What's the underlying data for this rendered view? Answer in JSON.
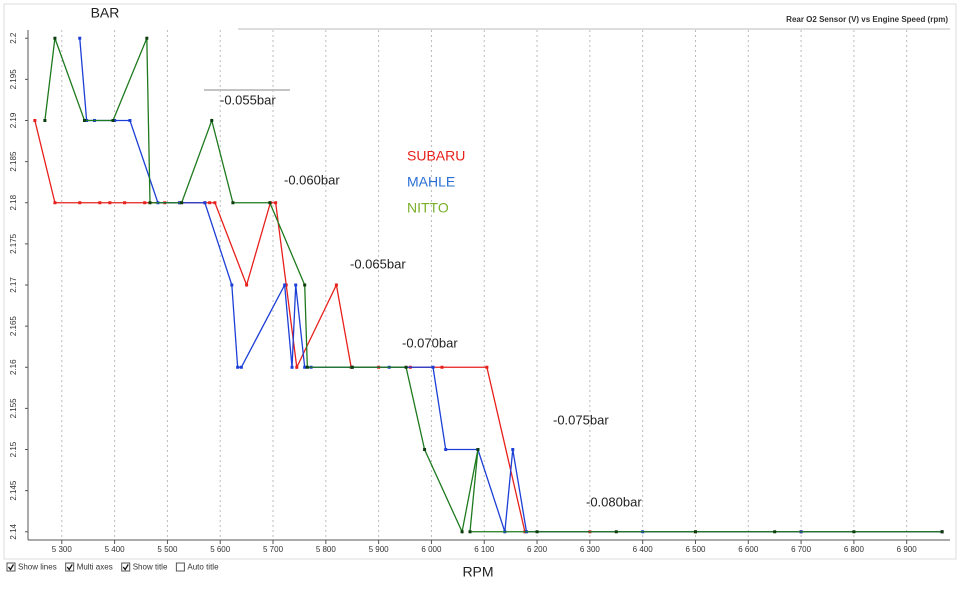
{
  "chart_data": {
    "type": "line",
    "title": "Rear O2 Sensor (V) vs Engine Speed (rpm)",
    "y_label": "BAR",
    "x_label": "RPM",
    "xlim": [
      5236,
      6982
    ],
    "ylim": [
      2.139,
      2.201
    ],
    "xticks": [
      {
        "value": 5300,
        "label": "5 300"
      },
      {
        "value": 5400,
        "label": "5 400"
      },
      {
        "value": 5500,
        "label": "5 500"
      },
      {
        "value": 5600,
        "label": "5 600"
      },
      {
        "value": 5700,
        "label": "5 700"
      },
      {
        "value": 5800,
        "label": "5 800"
      },
      {
        "value": 5900,
        "label": "5 900"
      },
      {
        "value": 6000,
        "label": "6 000"
      },
      {
        "value": 6100,
        "label": "6 100"
      },
      {
        "value": 6200,
        "label": "6 200"
      },
      {
        "value": 6300,
        "label": "6 300"
      },
      {
        "value": 6400,
        "label": "6 400"
      },
      {
        "value": 6500,
        "label": "6 500"
      },
      {
        "value": 6600,
        "label": "6 600"
      },
      {
        "value": 6700,
        "label": "6 700"
      },
      {
        "value": 6800,
        "label": "6 800"
      },
      {
        "value": 6900,
        "label": "6 900"
      }
    ],
    "yticks": [
      2.14,
      2.145,
      2.15,
      2.155,
      2.16,
      2.165,
      2.17,
      2.175,
      2.18,
      2.185,
      2.19,
      2.195,
      2.2
    ],
    "grid": true,
    "series": [
      {
        "name": "SUBARU",
        "color": "#e8201c",
        "x": [
          5249,
          5287,
          5334,
          5372,
          5391,
          5419,
          5457,
          5495,
          5523,
          5571,
          5580,
          5590,
          5650,
          5695,
          5705,
          5725,
          5745,
          5820,
          5848,
          5900,
          5960,
          6020,
          6105,
          6177,
          6300,
          6500,
          6700,
          6967
        ],
        "values": [
          2.19,
          2.18,
          2.18,
          2.18,
          2.18,
          2.18,
          2.18,
          2.18,
          2.18,
          2.18,
          2.18,
          2.18,
          2.17,
          2.18,
          2.18,
          2.17,
          2.16,
          2.17,
          2.16,
          2.16,
          2.16,
          2.16,
          2.16,
          2.14,
          2.14,
          2.14,
          2.14,
          2.14
        ]
      },
      {
        "name": "MAHLE",
        "color": "#1c3fd6",
        "x": [
          5334,
          5347,
          5362,
          5400,
          5429,
          5482,
          5523,
          5571,
          5622,
          5633,
          5640,
          5722,
          5736,
          5743,
          5760,
          5772,
          5850,
          5920,
          6003,
          6027,
          6088,
          6139,
          6154,
          6180,
          6400,
          6700,
          6967
        ],
        "values": [
          2.2,
          2.19,
          2.19,
          2.19,
          2.19,
          2.18,
          2.18,
          2.18,
          2.17,
          2.16,
          2.16,
          2.17,
          2.16,
          2.17,
          2.16,
          2.16,
          2.16,
          2.16,
          2.16,
          2.15,
          2.15,
          2.14,
          2.15,
          2.14,
          2.14,
          2.14,
          2.14
        ]
      },
      {
        "name": "NITTO",
        "color": "#1e7a1e",
        "x": [
          5268,
          5287,
          5343,
          5397,
          5461,
          5467,
          5527,
          5584,
          5624,
          5694,
          5760,
          5765,
          5850,
          5952,
          5987,
          6058,
          6088,
          6073,
          6200,
          6350,
          6500,
          6650,
          6800,
          6967
        ],
        "values": [
          2.19,
          2.2,
          2.19,
          2.19,
          2.2,
          2.18,
          2.18,
          2.19,
          2.18,
          2.18,
          2.17,
          2.16,
          2.16,
          2.16,
          2.15,
          2.14,
          2.15,
          2.14,
          2.14,
          2.14,
          2.14,
          2.14,
          2.14,
          2.14
        ]
      }
    ],
    "annotations": [
      "-0.055bar",
      "-0.060bar",
      "-0.065bar",
      "-0.070bar",
      "-0.075bar",
      "-0.080bar"
    ],
    "controls": [
      {
        "label": "Show lines",
        "checked": true
      },
      {
        "label": "Multi axes",
        "checked": true
      },
      {
        "label": "Show title",
        "checked": true
      },
      {
        "label": "Auto title",
        "checked": false
      }
    ]
  }
}
